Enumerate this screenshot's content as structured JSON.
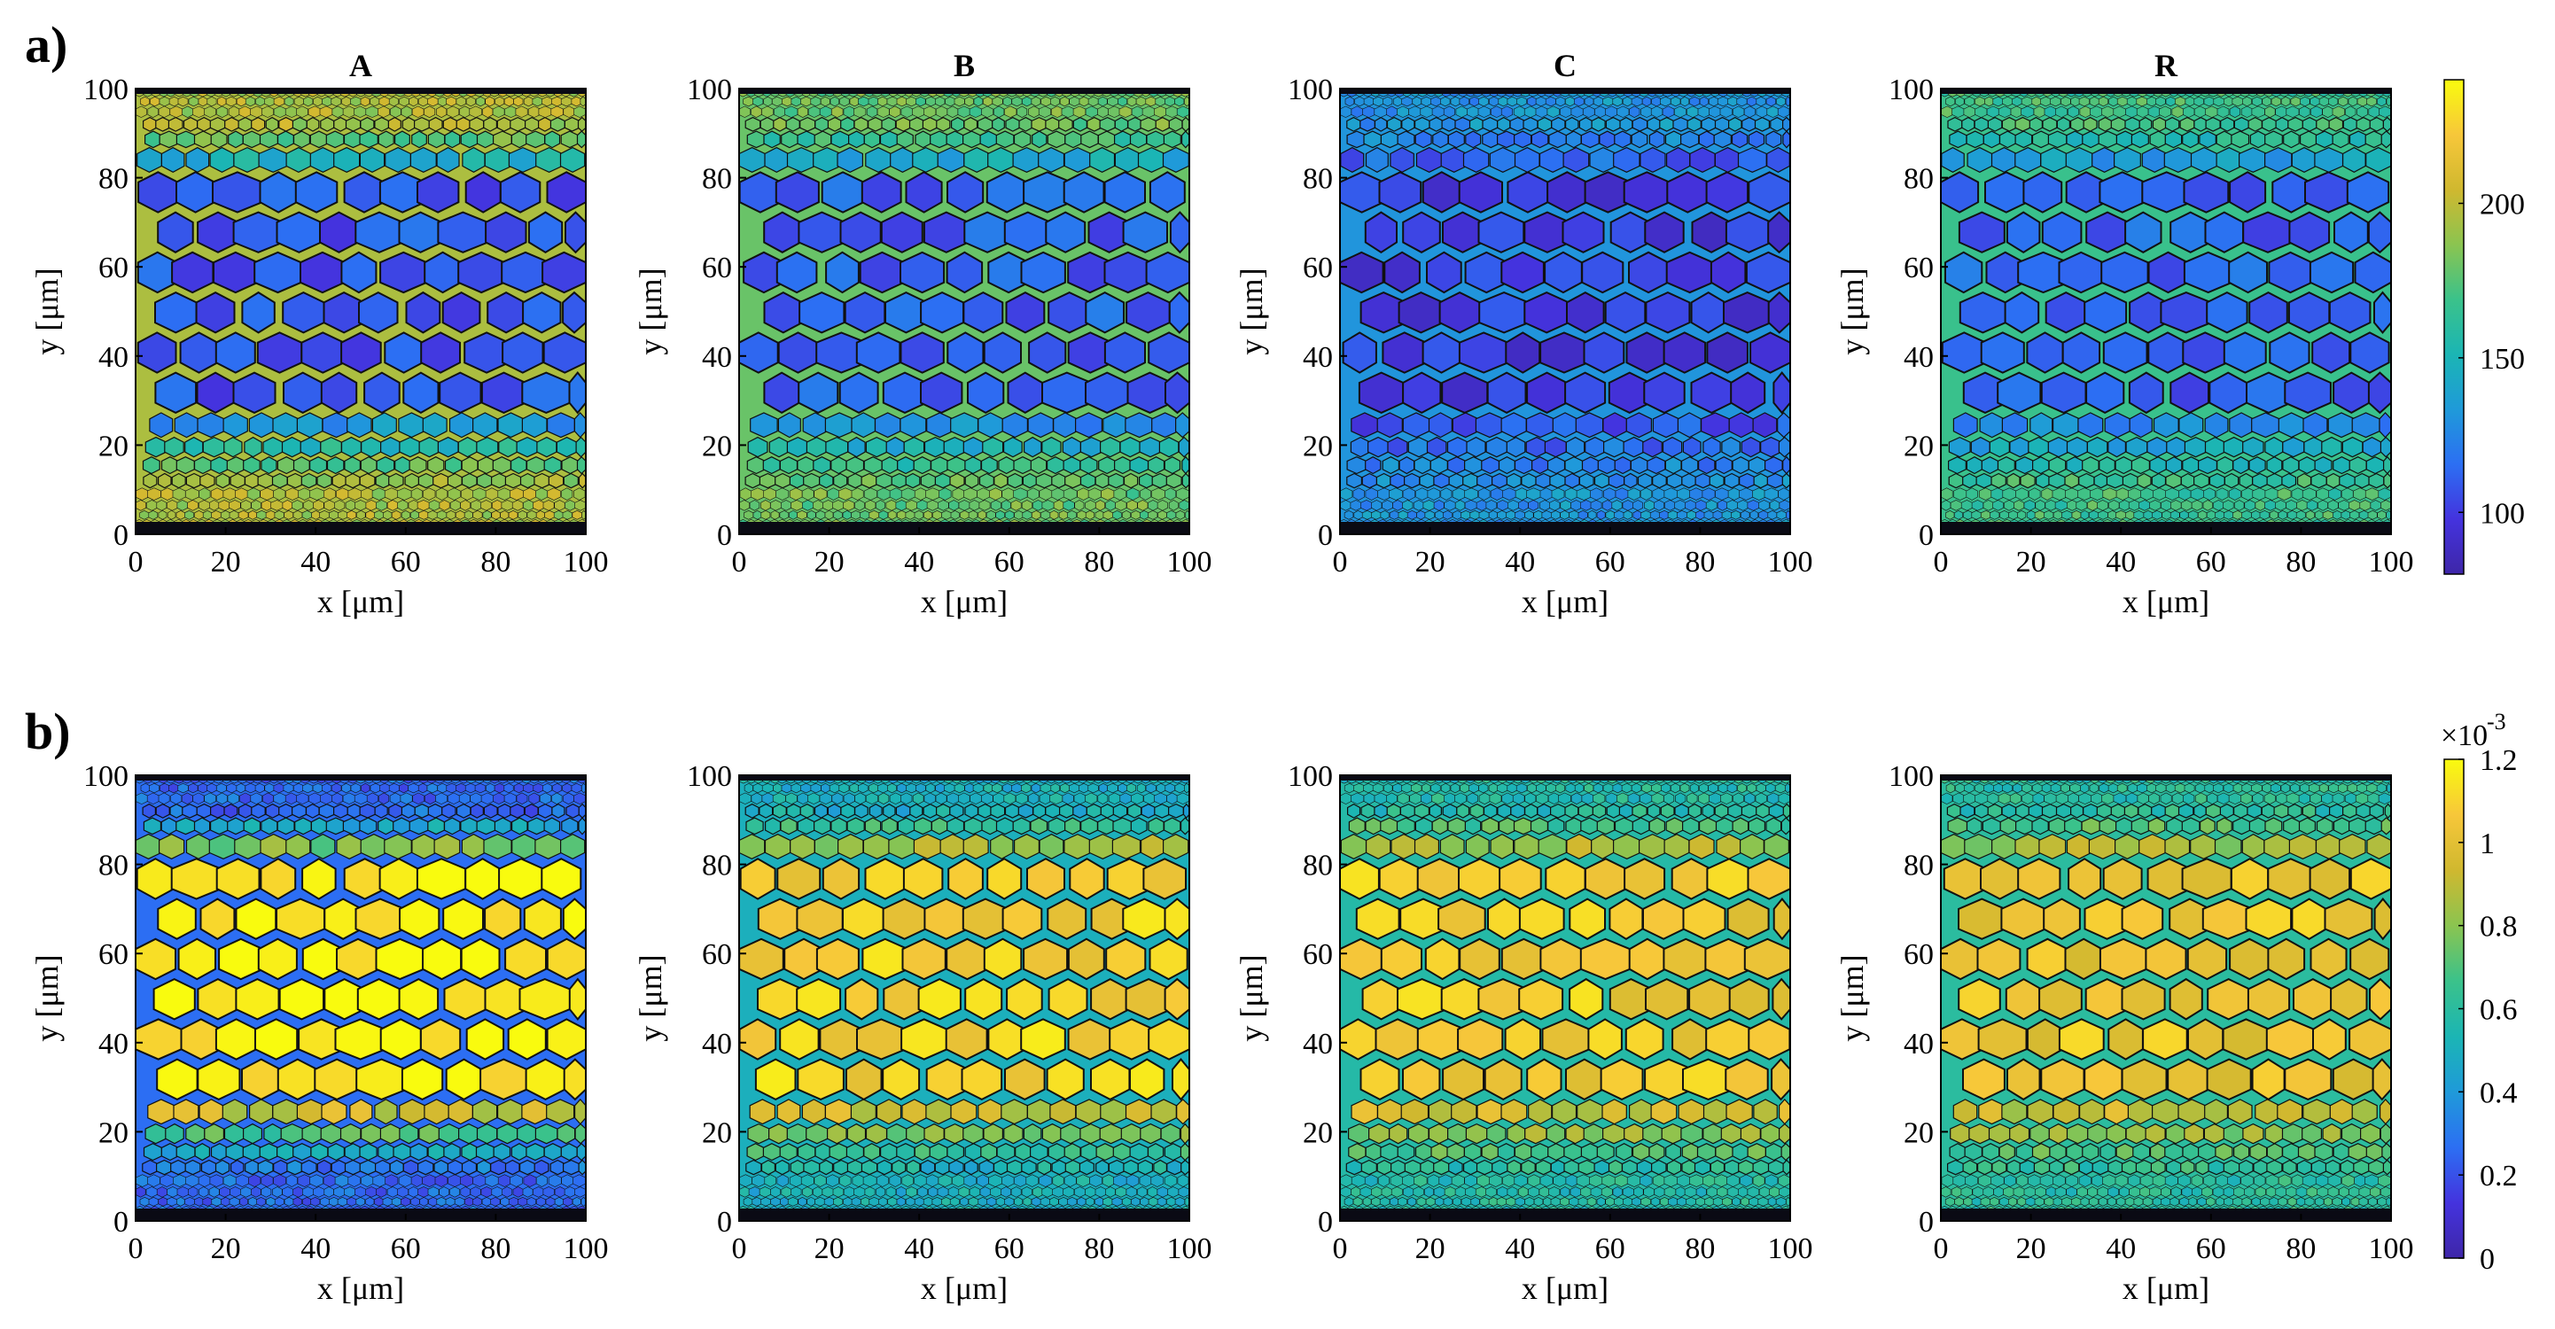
{
  "panels": [
    {
      "id": "a",
      "label": "a)"
    },
    {
      "id": "b",
      "label": "b)"
    }
  ],
  "columns": [
    "A",
    "B",
    "C",
    "R"
  ],
  "colors": {
    "parula": [
      "#3e26a8",
      "#4433de",
      "#2c6ff3",
      "#1f9ad9",
      "#1bb5b4",
      "#3bc28a",
      "#8bc450",
      "#d0b82f",
      "#f7c73a",
      "#f9fb0e"
    ],
    "axis": "#000000",
    "cell_edge": "#111111"
  },
  "chart_data": [
    {
      "type": "heatmap",
      "panel": "a)",
      "subplots": [
        {
          "title": "A",
          "band_level": 0.18,
          "edge_level": 0.72
        },
        {
          "title": "B",
          "band_level": 0.2,
          "edge_level": 0.62
        },
        {
          "title": "C",
          "band_level": 0.12,
          "edge_level": 0.32
        },
        {
          "title": "R",
          "band_level": 0.2,
          "edge_level": 0.55
        }
      ],
      "xlabel": "x [μm]",
      "ylabel": "y [μm]",
      "xlim": [
        0,
        100
      ],
      "ylim": [
        0,
        100
      ],
      "xticks": [
        "0",
        "20",
        "40",
        "60",
        "80",
        "100"
      ],
      "yticks": [
        "0",
        "20",
        "40",
        "60",
        "80",
        "100"
      ],
      "colorbar": {
        "range": [
          80,
          240
        ],
        "ticks": [
          "100",
          "150",
          "200"
        ]
      }
    },
    {
      "type": "heatmap",
      "panel": "b)",
      "subplots": [
        {
          "title": "A",
          "band_level": 0.98,
          "edge_level": 0.22
        },
        {
          "title": "B",
          "band_level": 0.9,
          "edge_level": 0.42
        },
        {
          "title": "C",
          "band_level": 0.88,
          "edge_level": 0.48
        },
        {
          "title": "R",
          "band_level": 0.86,
          "edge_level": 0.5
        }
      ],
      "xlabel": "x [μm]",
      "ylabel": "y [μm]",
      "xlim": [
        0,
        100
      ],
      "ylim": [
        0,
        100
      ],
      "xticks": [
        "0",
        "20",
        "40",
        "60",
        "80",
        "100"
      ],
      "yticks": [
        "0",
        "20",
        "40",
        "60",
        "80",
        "100"
      ],
      "colorbar": {
        "range": [
          0,
          1.2
        ],
        "ticks": [
          "0",
          "0.2",
          "0.4",
          "0.6",
          "0.8",
          "1",
          "1.2"
        ],
        "exponent": "×10",
        "exponent_power": "-3"
      }
    }
  ]
}
